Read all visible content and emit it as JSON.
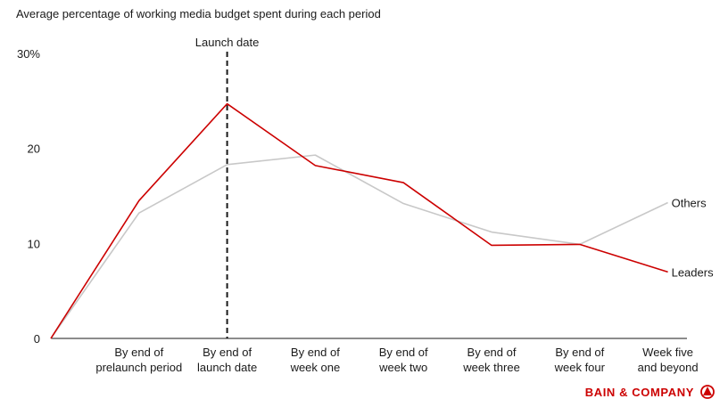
{
  "chart_data": {
    "type": "line",
    "title": "Average percentage of working media budget spent during each period",
    "y_unit_label": "30%",
    "ylim": [
      0,
      30
    ],
    "y_ticks": [
      0,
      10,
      20
    ],
    "categories": [
      "",
      [
        "By end of",
        "prelaunch period"
      ],
      [
        "By end of",
        "launch date"
      ],
      [
        "By end of",
        "week one"
      ],
      [
        "By end of",
        "week two"
      ],
      [
        "By end of",
        "week three"
      ],
      [
        "By end of",
        "week four"
      ],
      [
        "Week five",
        "and beyond"
      ]
    ],
    "series": [
      {
        "name": "Others",
        "color": "#c8c8c8",
        "values": [
          0,
          13.2,
          18.3,
          19.3,
          14.2,
          11.2,
          9.9,
          14.3
        ]
      },
      {
        "name": "Leaders",
        "color": "#cc0000",
        "values": [
          0,
          14.5,
          24.7,
          18.2,
          16.4,
          9.8,
          9.9,
          7.0
        ]
      }
    ],
    "annotation": {
      "label": "Launch date",
      "category_index": 2,
      "style": "dashed"
    },
    "grid": false
  },
  "brand": {
    "text": "BAIN & COMPANY",
    "icon": "bain-logo-icon",
    "color": "#cc0000"
  }
}
